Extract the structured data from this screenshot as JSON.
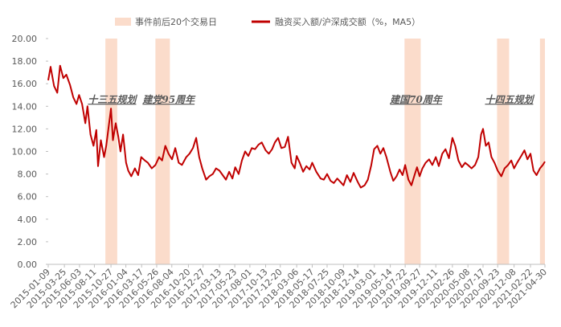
{
  "chart_data": {
    "type": "line",
    "legend_position": "top",
    "x": [
      "2015-01-09",
      "2015-01-20",
      "2015-02-05",
      "2015-02-20",
      "2015-03-05",
      "2015-03-20",
      "2015-04-03",
      "2015-04-20",
      "2015-05-05",
      "2015-05-20",
      "2015-06-01",
      "2015-06-15",
      "2015-06-30",
      "2015-07-10",
      "2015-07-24",
      "2015-08-07",
      "2015-08-20",
      "2015-08-28",
      "2015-09-10",
      "2015-09-25",
      "2015-10-05",
      "2015-10-15",
      "2015-10-27",
      "2015-11-05",
      "2015-11-18",
      "2015-11-30",
      "2015-12-10",
      "2015-12-22",
      "2016-01-05",
      "2016-01-15",
      "2016-01-29",
      "2016-02-15",
      "2016-03-01",
      "2016-03-15",
      "2016-04-01",
      "2016-04-15",
      "2016-05-03",
      "2016-05-20",
      "2016-06-06",
      "2016-06-20",
      "2016-07-05",
      "2016-07-20",
      "2016-08-05",
      "2016-08-20",
      "2016-09-05",
      "2016-09-20",
      "2016-10-10",
      "2016-10-25",
      "2016-11-10",
      "2016-11-25",
      "2016-12-09",
      "2016-12-23",
      "2017-01-10",
      "2017-01-25",
      "2017-02-10",
      "2017-02-25",
      "2017-03-13",
      "2017-03-28",
      "2017-04-12",
      "2017-04-27",
      "2017-05-12",
      "2017-05-25",
      "2017-06-10",
      "2017-06-25",
      "2017-07-10",
      "2017-07-25",
      "2017-08-10",
      "2017-08-25",
      "2017-09-10",
      "2017-09-25",
      "2017-10-13",
      "2017-10-28",
      "2017-11-12",
      "2017-11-25",
      "2017-12-10",
      "2017-12-25",
      "2018-01-10",
      "2018-01-25",
      "2018-02-10",
      "2018-02-25",
      "2018-03-06",
      "2018-03-20",
      "2018-04-05",
      "2018-04-20",
      "2018-05-05",
      "2018-05-17",
      "2018-06-05",
      "2018-06-25",
      "2018-07-10",
      "2018-07-25",
      "2018-08-10",
      "2018-08-25",
      "2018-09-10",
      "2018-09-25",
      "2018-10-09",
      "2018-10-25",
      "2018-11-10",
      "2018-11-25",
      "2018-12-14",
      "2018-12-28",
      "2019-01-15",
      "2019-01-30",
      "2019-02-15",
      "2019-02-28",
      "2019-03-15",
      "2019-03-29",
      "2019-04-12",
      "2019-04-26",
      "2019-05-14",
      "2019-05-28",
      "2019-06-12",
      "2019-06-26",
      "2019-07-10",
      "2019-07-22",
      "2019-08-06",
      "2019-08-20",
      "2019-09-05",
      "2019-09-15",
      "2019-09-27",
      "2019-10-10",
      "2019-10-25",
      "2019-11-10",
      "2019-11-25",
      "2019-12-11",
      "2019-12-25",
      "2020-01-10",
      "2020-01-25",
      "2020-02-10",
      "2020-02-26",
      "2020-03-10",
      "2020-03-25",
      "2020-04-10",
      "2020-04-25",
      "2020-05-08",
      "2020-05-25",
      "2020-06-10",
      "2020-06-25",
      "2020-07-08",
      "2020-07-17",
      "2020-07-30",
      "2020-08-12",
      "2020-08-25",
      "2020-09-08",
      "2020-09-23",
      "2020-10-10",
      "2020-10-25",
      "2020-11-10",
      "2020-11-25",
      "2020-12-08",
      "2020-12-22",
      "2021-01-10",
      "2021-01-25",
      "2021-02-08",
      "2021-02-22",
      "2021-03-08",
      "2021-03-22",
      "2021-04-07",
      "2021-04-20",
      "2021-04-30"
    ],
    "series": [
      {
        "name": "融资买入额/沪深成交额（%，MA5）",
        "color": "#c00000",
        "values": [
          16.3,
          17.5,
          15.8,
          15.2,
          17.6,
          16.5,
          16.8,
          15.9,
          14.8,
          14.2,
          15.0,
          14.2,
          12.5,
          14.0,
          11.5,
          10.5,
          11.9,
          8.7,
          11.0,
          9.5,
          10.5,
          12.0,
          13.8,
          11.0,
          12.5,
          11.3,
          10.0,
          11.5,
          9.0,
          8.3,
          7.8,
          8.5,
          7.9,
          9.5,
          9.2,
          9.0,
          8.5,
          8.8,
          9.5,
          9.2,
          10.5,
          9.8,
          9.3,
          10.3,
          9.0,
          8.8,
          9.5,
          9.8,
          10.3,
          11.2,
          9.5,
          8.5,
          7.5,
          7.8,
          8.0,
          8.5,
          8.3,
          7.9,
          7.5,
          8.2,
          7.6,
          8.6,
          8.0,
          9.2,
          10.0,
          9.6,
          10.3,
          10.2,
          10.6,
          10.8,
          10.1,
          9.8,
          10.2,
          10.8,
          11.2,
          10.3,
          10.4,
          11.3,
          9.0,
          8.5,
          9.6,
          9.0,
          8.2,
          8.7,
          8.4,
          9.0,
          8.2,
          7.6,
          7.5,
          8.0,
          7.4,
          7.2,
          7.6,
          7.3,
          7.0,
          7.9,
          7.3,
          8.1,
          7.3,
          6.8,
          7.0,
          7.5,
          8.8,
          10.2,
          10.5,
          9.8,
          10.3,
          9.5,
          8.2,
          7.4,
          7.8,
          8.4,
          7.9,
          8.8,
          7.5,
          7.0,
          8.0,
          8.6,
          7.8,
          8.5,
          9.0,
          9.3,
          8.8,
          9.5,
          8.7,
          9.8,
          10.2,
          9.4,
          11.2,
          10.5,
          9.2,
          8.6,
          9.0,
          8.8,
          8.5,
          8.8,
          9.5,
          11.5,
          12.0,
          10.5,
          10.8,
          9.5,
          9.0,
          8.3,
          7.8,
          8.5,
          8.8,
          9.2,
          8.5,
          9.0,
          9.6,
          10.1,
          9.3,
          9.8,
          8.3,
          7.9,
          8.5,
          8.8,
          9.1
        ]
      }
    ],
    "highlights": {
      "name": "事件前后20个交易日",
      "color": "#fbdccb",
      "ranges": [
        [
          "2015-10-01",
          "2015-11-25"
        ],
        [
          "2016-05-20",
          "2016-07-26"
        ],
        [
          "2019-07-19",
          "2019-10-02"
        ],
        [
          "2020-09-20",
          "2020-11-15"
        ],
        [
          "2021-04-07",
          "2021-04-30"
        ]
      ]
    },
    "annotations": [
      {
        "text": "十三五规划",
        "x": "2015-11-01",
        "y": 14.3
      },
      {
        "text": "建党95周年",
        "x": "2016-07-20",
        "y": 14.3
      },
      {
        "text": "建国70周年",
        "x": "2019-09-10",
        "y": 14.3
      },
      {
        "text": "十四五规划",
        "x": "2020-11-15",
        "y": 14.3
      }
    ],
    "xlim": [
      "2015-01-09",
      "2021-04-30"
    ],
    "xticks": [
      "2015-01-09",
      "2015-03-25",
      "2015-06-03",
      "2015-08-11",
      "2015-10-27",
      "2016-01-04",
      "2016-03-17",
      "2016-05-26",
      "2016-08-04",
      "2016-10-20",
      "2016-12-27",
      "2017-03-13",
      "2017-05-23",
      "2017-08-01",
      "2017-10-13",
      "2017-12-20",
      "2018-03-06",
      "2018-05-17",
      "2018-07-25",
      "2018-10-09",
      "2018-12-14",
      "2019-03-01",
      "2019-05-14",
      "2019-07-22",
      "2019-09-27",
      "2019-12-11",
      "2020-02-26",
      "2020-05-08",
      "2020-07-17",
      "2020-09-23",
      "2020-12-08",
      "2021-02-22",
      "2021-04-30"
    ],
    "ylim": [
      0,
      20
    ],
    "yticks": [
      {
        "value": 0,
        "label": "0.00"
      },
      {
        "value": 2,
        "label": "2.00"
      },
      {
        "value": 4,
        "label": "4.00"
      },
      {
        "value": 6,
        "label": "6.00"
      },
      {
        "value": 8,
        "label": "8.00"
      },
      {
        "value": 10,
        "label": "10.00"
      },
      {
        "value": 12,
        "label": "12.00"
      },
      {
        "value": 14,
        "label": "14.00"
      },
      {
        "value": 16,
        "label": "16.00"
      },
      {
        "value": 18,
        "label": "18.00"
      },
      {
        "value": 20,
        "label": "20.00"
      }
    ],
    "grid": false
  }
}
